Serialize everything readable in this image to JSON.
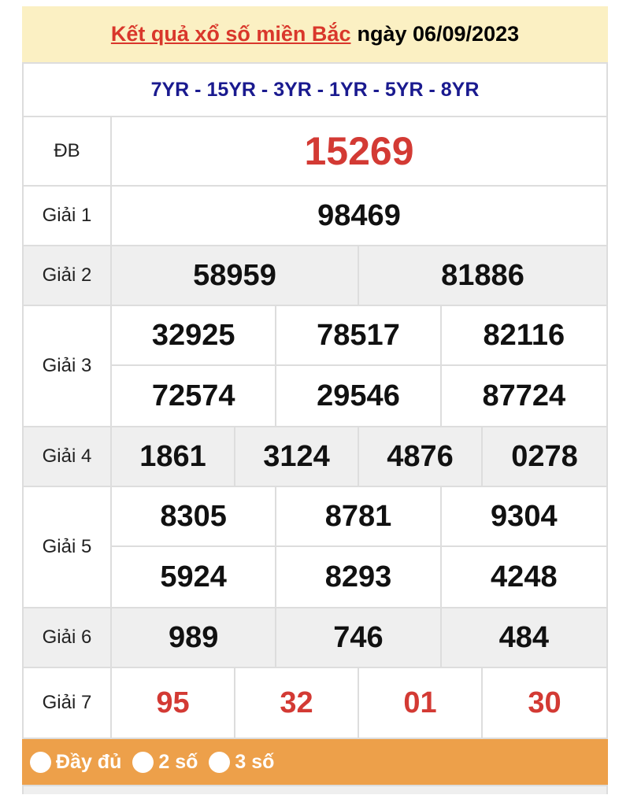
{
  "header": {
    "link": "Kết quả xổ số miền Bắc",
    "date_text": "ngày 06/09/2023"
  },
  "codes": "7YR - 15YR - 3YR - 1YR - 5YR - 8YR",
  "prizes": [
    {
      "label": "ĐB",
      "numbers": [
        "15269"
      ],
      "cols": 1,
      "rows": 1,
      "gray": false,
      "red": true
    },
    {
      "label": "Giải 1",
      "numbers": [
        "98469"
      ],
      "cols": 1,
      "rows": 1,
      "gray": false,
      "red": false
    },
    {
      "label": "Giải 2",
      "numbers": [
        "58959",
        "81886"
      ],
      "cols": 2,
      "rows": 1,
      "gray": true,
      "red": false
    },
    {
      "label": "Giải 3",
      "numbers": [
        "32925",
        "78517",
        "82116",
        "72574",
        "29546",
        "87724"
      ],
      "cols": 3,
      "rows": 2,
      "gray": false,
      "red": false
    },
    {
      "label": "Giải 4",
      "numbers": [
        "1861",
        "3124",
        "4876",
        "0278"
      ],
      "cols": 4,
      "rows": 1,
      "gray": true,
      "red": false
    },
    {
      "label": "Giải 5",
      "numbers": [
        "8305",
        "8781",
        "9304",
        "5924",
        "8293",
        "4248"
      ],
      "cols": 3,
      "rows": 2,
      "gray": false,
      "red": false
    },
    {
      "label": "Giải 6",
      "numbers": [
        "989",
        "746",
        "484"
      ],
      "cols": 3,
      "rows": 1,
      "gray": true,
      "red": false
    },
    {
      "label": "Giải 7",
      "numbers": [
        "95",
        "32",
        "01",
        "30"
      ],
      "cols": 4,
      "rows": 1,
      "gray": false,
      "red": true
    }
  ],
  "options": [
    "Đầy đủ",
    "2 số",
    "3 số"
  ],
  "colors": {
    "accent_red": "#d33a34",
    "code_blue": "#1a1a8f",
    "header_bg": "#fbf0c3",
    "bar_orange": "#eda04a"
  }
}
